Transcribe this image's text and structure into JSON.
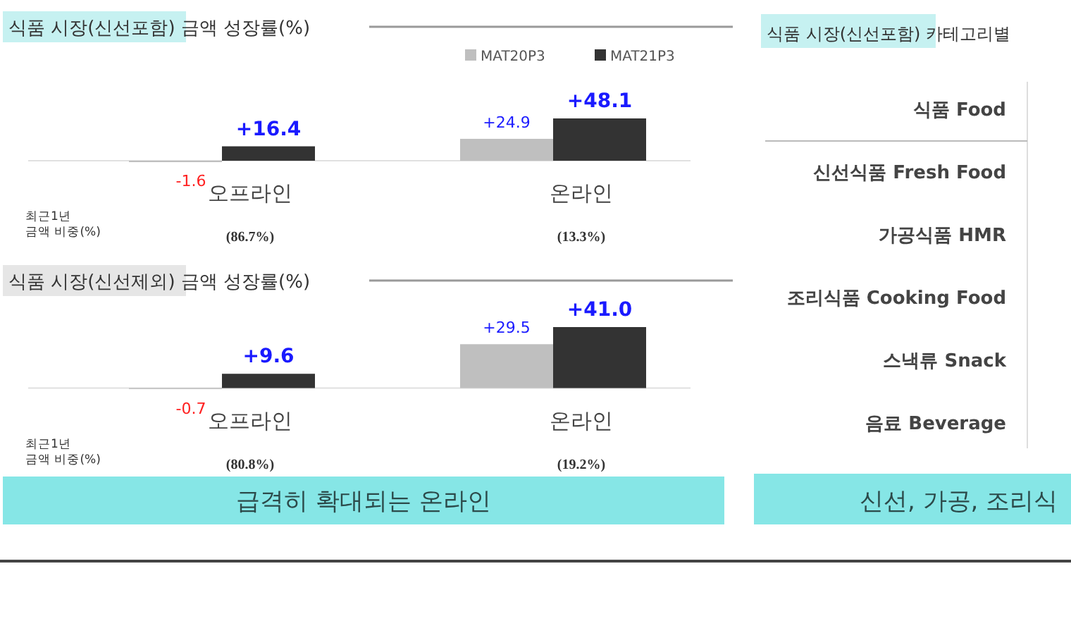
{
  "chart_data": [
    {
      "type": "bar",
      "title": "식품 시장(신선포함) 금액 성장률(%)",
      "categories": [
        "오프라인",
        "온라인"
      ],
      "series": [
        {
          "name": "MAT20P3",
          "color": "#bfbfbf",
          "values": [
            -1.6,
            24.9
          ],
          "value_labels": [
            "-1.6",
            "+24.9"
          ]
        },
        {
          "name": "MAT21P3",
          "color": "#333333",
          "values": [
            16.4,
            48.1
          ],
          "value_labels": [
            "+16.4",
            "+48.1"
          ]
        }
      ],
      "legend": "top right",
      "annotations": [
        "최근1년\n금액 비중(%)",
        "(86.7%)",
        "(13.3%)"
      ]
    },
    {
      "type": "bar",
      "title": "식품 시장(신선제외) 금액 성장률(%)",
      "categories": [
        "오프라인",
        "온라인"
      ],
      "series": [
        {
          "color": "#bfbfbf",
          "values": [
            -0.7,
            29.5
          ],
          "value_labels": [
            "-0.7",
            "+29.5"
          ]
        },
        {
          "color": "#333333",
          "values": [
            9.6,
            41.0
          ],
          "value_labels": [
            "+9.6",
            "+41.0"
          ]
        }
      ],
      "annotations": [
        "최근1년\n금액 비중(%)",
        "(80.8%)",
        "(19.2%)",
        "급격히 확대되는 온라인"
      ]
    },
    {
      "type": "other",
      "title": "식품 시장(신선포함) 카테고리별",
      "categories": [
        "식품 Food",
        "신선식품 Fresh Food",
        "가공식품 HMR",
        "조리식품 Cooking Food",
        "스낵류 Snack",
        "음료 Beverage"
      ],
      "annotations": [
        "신선, 가공, 조리식"
      ]
    }
  ]
}
